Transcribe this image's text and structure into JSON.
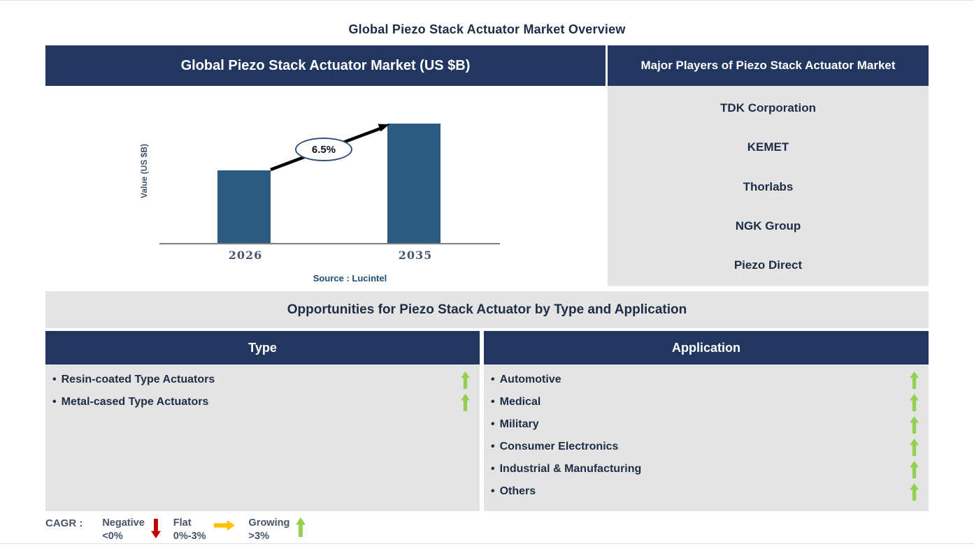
{
  "page": {
    "title": "Global Piezo Stack Actuator Market Overview"
  },
  "colors": {
    "header_navy": "#21375f",
    "bar_blue": "#2d5a80",
    "panel_gray": "#e4e4e4",
    "text_navy": "#1e2d46",
    "source_blue": "#1f4e79",
    "tick_color": "#4a576b",
    "growing_green": "#92d050",
    "negative_red": "#c00000",
    "flat_yellow": "#ffc000",
    "trend_arrow_black": "#000000"
  },
  "chart_data": {
    "type": "bar",
    "title": "Global Piezo Stack Actuator Market (US $B)",
    "categories": [
      "2026",
      "2035"
    ],
    "values_relative": [
      0.61,
      1.0
    ],
    "ylabel": "Value (US $B)",
    "xlabel": "",
    "axis_values_labeled": false,
    "ylim": [
      0,
      1.15
    ],
    "grid": false,
    "legend_position": "none",
    "cagr_annotation": "6.5%",
    "source": "Source : Lucintel",
    "bar_color": "#2d5a80"
  },
  "market_panel": {
    "header": "Global Piezo Stack Actuator Market (US $B)"
  },
  "players_panel": {
    "header": "Major Players of Piezo Stack Actuator Market",
    "players": [
      "TDK Corporation",
      "KEMET",
      "Thorlabs",
      "NGK Group",
      "Piezo Direct"
    ]
  },
  "opportunities": {
    "title": "Opportunities for Piezo Stack Actuator by Type and Application"
  },
  "bullet": "•",
  "type_panel": {
    "header": "Type",
    "items": [
      {
        "label": "Resin-coated Type Actuators",
        "trend": "growing"
      },
      {
        "label": "Metal-cased Type Actuators",
        "trend": "growing"
      }
    ]
  },
  "application_panel": {
    "header": "Application",
    "items": [
      {
        "label": "Automotive",
        "trend": "growing"
      },
      {
        "label": "Medical",
        "trend": "growing"
      },
      {
        "label": "Military",
        "trend": "growing"
      },
      {
        "label": "Consumer Electronics",
        "trend": "growing"
      },
      {
        "label": "Industrial & Manufacturing",
        "trend": "growing"
      },
      {
        "label": "Others",
        "trend": "growing"
      }
    ]
  },
  "legend": {
    "label": "CAGR :",
    "entries": [
      {
        "name": "Negative",
        "range": "<0%",
        "direction": "down",
        "color": "#c00000"
      },
      {
        "name": "Flat",
        "range": "0%-3%",
        "direction": "right",
        "color": "#ffc000"
      },
      {
        "name": "Growing",
        "range": ">3%",
        "direction": "up",
        "color": "#92d050"
      }
    ]
  }
}
